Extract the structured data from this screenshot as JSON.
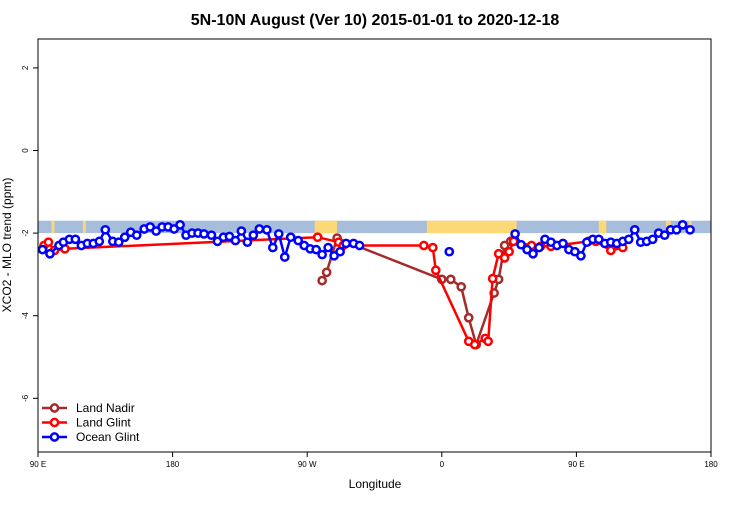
{
  "chart_data": {
    "type": "line",
    "title": "5N-10N August (Ver 10)   2015-01-01 to 2020-12-18",
    "xlabel": "Longitude",
    "ylabel": "XCO2 - MLO trend (ppm)",
    "x_range_note": "longitude offset in degrees east starting at 90 E (0 = 90 E, 90 = 180, 180 = 90 W, 270 = 0, 360 = 90 E, 450 = 180)",
    "xlim": [
      0,
      450
    ],
    "ylim": [
      -7.3,
      2.7
    ],
    "x_ticks": [
      {
        "x": 0,
        "label": "90 E"
      },
      {
        "x": 90,
        "label": "180"
      },
      {
        "x": 180,
        "label": "90 W"
      },
      {
        "x": 270,
        "label": "0"
      },
      {
        "x": 360,
        "label": "90 E"
      },
      {
        "x": 450,
        "label": "180"
      }
    ],
    "y_ticks": [
      {
        "y": 2,
        "label": "2"
      },
      {
        "y": 0,
        "label": "0"
      },
      {
        "y": -2,
        "label": "-2"
      },
      {
        "y": -4,
        "label": "-4"
      },
      {
        "y": -6,
        "label": "-6"
      }
    ],
    "map_strip": {
      "y_top": -1.7,
      "y_bottom": -2.0,
      "ocean_color": "#a6bddb",
      "land_color": "#fdd976",
      "land_segments": [
        [
          9,
          11
        ],
        [
          30,
          32
        ],
        [
          185,
          200
        ],
        [
          260,
          320
        ],
        [
          375,
          380
        ],
        [
          420,
          423
        ],
        [
          435,
          437
        ]
      ]
    },
    "legend_position": "bottom-left",
    "series": [
      {
        "name": "Land Nadir",
        "color": "#a52a2a",
        "points": [
          [
            190,
            -3.15
          ],
          [
            193,
            -2.95
          ],
          [
            200,
            -2.12
          ],
          [
            270,
            -3.12
          ],
          [
            276,
            -3.12
          ],
          [
            283,
            -3.3
          ],
          [
            288,
            -4.05
          ],
          [
            293,
            -4.7
          ],
          [
            305,
            -3.45
          ],
          [
            308,
            -3.12
          ],
          [
            312,
            -2.3
          ],
          [
            316,
            -2.2
          ]
        ]
      },
      {
        "name": "Land Glint",
        "color": "#ff0000",
        "points": [
          [
            4,
            -2.3
          ],
          [
            7,
            -2.22
          ],
          [
            11,
            -2.42
          ],
          [
            18,
            -2.38
          ],
          [
            187,
            -2.1
          ],
          [
            201,
            -2.22
          ],
          [
            204,
            -2.3
          ],
          [
            258,
            -2.3
          ],
          [
            264,
            -2.35
          ],
          [
            266,
            -2.9
          ],
          [
            288,
            -4.62
          ],
          [
            292,
            -4.7
          ],
          [
            299,
            -4.55
          ],
          [
            301,
            -4.62
          ],
          [
            304,
            -3.1
          ],
          [
            308,
            -2.5
          ],
          [
            312,
            -2.6
          ],
          [
            315,
            -2.45
          ],
          [
            318,
            -2.2
          ],
          [
            330,
            -2.3
          ],
          [
            336,
            -2.32
          ],
          [
            343,
            -2.32
          ],
          [
            368,
            -2.2
          ],
          [
            373,
            -2.2
          ],
          [
            383,
            -2.42
          ],
          [
            391,
            -2.35
          ]
        ]
      },
      {
        "name": "Ocean Glint",
        "color": "#0000ff",
        "points": [
          [
            3,
            -2.4
          ],
          [
            8,
            -2.5
          ],
          [
            14,
            -2.3
          ],
          [
            17,
            -2.22
          ],
          [
            21,
            -2.15
          ],
          [
            25,
            -2.15
          ],
          [
            29,
            -2.3
          ],
          [
            33,
            -2.25
          ],
          [
            37,
            -2.25
          ],
          [
            41,
            -2.2
          ],
          [
            45,
            -1.92
          ],
          [
            50,
            -2.2
          ],
          [
            54,
            -2.22
          ],
          [
            58,
            -2.1
          ],
          [
            62,
            -1.98
          ],
          [
            66,
            -2.05
          ],
          [
            71,
            -1.9
          ],
          [
            75,
            -1.85
          ],
          [
            79,
            -1.95
          ],
          [
            83,
            -1.85
          ],
          [
            87,
            -1.85
          ],
          [
            91,
            -1.9
          ],
          [
            95,
            -1.8
          ],
          [
            99,
            -2.05
          ],
          [
            103,
            -2.0
          ],
          [
            107,
            -2.0
          ],
          [
            111,
            -2.02
          ],
          [
            116,
            -2.05
          ],
          [
            120,
            -2.2
          ],
          [
            124,
            -2.1
          ],
          [
            128,
            -2.08
          ],
          [
            132,
            -2.18
          ],
          [
            136,
            -1.95
          ],
          [
            140,
            -2.22
          ],
          [
            144,
            -2.05
          ],
          [
            148,
            -1.9
          ],
          [
            153,
            -1.92
          ],
          [
            157,
            -2.35
          ],
          [
            161,
            -2.02
          ],
          [
            165,
            -2.58
          ],
          [
            169,
            -2.1
          ],
          [
            174,
            -2.18
          ],
          [
            178,
            -2.3
          ],
          [
            182,
            -2.38
          ],
          [
            186,
            -2.4
          ],
          [
            190,
            -2.52
          ],
          [
            194,
            -2.35
          ],
          [
            198,
            -2.55
          ],
          [
            202,
            -2.45
          ],
          [
            206,
            -2.25
          ],
          [
            211,
            -2.25
          ],
          [
            215,
            -2.3
          ],
          [
            null,
            null
          ],
          [
            275,
            -2.45
          ],
          [
            null,
            null
          ],
          [
            319,
            -2.02
          ],
          [
            323,
            -2.28
          ],
          [
            327,
            -2.4
          ],
          [
            331,
            -2.5
          ],
          [
            335,
            -2.35
          ],
          [
            339,
            -2.15
          ],
          [
            343,
            -2.22
          ],
          [
            347,
            -2.3
          ],
          [
            351,
            -2.25
          ],
          [
            355,
            -2.4
          ],
          [
            359,
            -2.45
          ],
          [
            363,
            -2.55
          ],
          [
            367,
            -2.22
          ],
          [
            371,
            -2.15
          ],
          [
            375,
            -2.15
          ],
          [
            379,
            -2.25
          ],
          [
            383,
            -2.22
          ],
          [
            387,
            -2.25
          ],
          [
            391,
            -2.2
          ],
          [
            395,
            -2.15
          ],
          [
            399,
            -1.92
          ],
          [
            403,
            -2.22
          ],
          [
            407,
            -2.2
          ],
          [
            411,
            -2.15
          ],
          [
            415,
            -2.0
          ],
          [
            419,
            -2.05
          ],
          [
            423,
            -1.92
          ],
          [
            427,
            -1.92
          ],
          [
            431,
            -1.8
          ],
          [
            436,
            -1.92
          ]
        ]
      }
    ]
  }
}
